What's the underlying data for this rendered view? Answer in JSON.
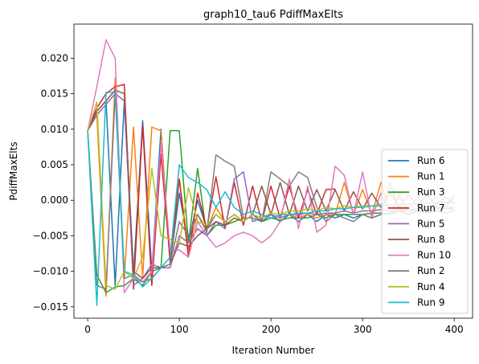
{
  "chart_data": {
    "type": "line",
    "title": "graph10_tau6 PdiffMaxElts",
    "xlabel": "Iteration Number",
    "ylabel": "PdiffMaxElts",
    "xlim": [
      -15,
      420
    ],
    "ylim": [
      -0.0166,
      0.0248
    ],
    "xticks": [
      0,
      100,
      200,
      300,
      400
    ],
    "xtick_labels": [
      "0",
      "100",
      "200",
      "300",
      "400"
    ],
    "yticks": [
      -0.015,
      -0.01,
      -0.005,
      0.0,
      0.005,
      0.01,
      0.015,
      0.02
    ],
    "ytick_labels": [
      "−0.015",
      "−0.010",
      "−0.005",
      "0.000",
      "0.005",
      "0.010",
      "0.015",
      "0.020"
    ],
    "grid": false,
    "legend_position": "lower-right",
    "series": [
      {
        "name": "Run 6",
        "color": "#1f77b4",
        "x": [
          0,
          10,
          20,
          30,
          40,
          50,
          60,
          70,
          80,
          90,
          100,
          110,
          120,
          130,
          140,
          150,
          160,
          170,
          180,
          190,
          200,
          210,
          220,
          230,
          240,
          250,
          260,
          270,
          280,
          290,
          300,
          310,
          320,
          330,
          340,
          350,
          360,
          370,
          380,
          390,
          400
        ],
        "y": [
          0.0098,
          0.0125,
          0.014,
          -0.012,
          0.014,
          -0.0105,
          0.0112,
          -0.01,
          0.01,
          -0.009,
          0.001,
          -0.006,
          0.0,
          -0.004,
          -0.002,
          -0.003,
          -0.002,
          -0.003,
          -0.002,
          -0.003,
          -0.002,
          -0.003,
          -0.002,
          -0.003,
          -0.002,
          -0.003,
          -0.002,
          -0.0025,
          -0.002,
          -0.0025,
          -0.002,
          -0.0025,
          -0.002,
          -0.002,
          -0.0015,
          -0.002,
          -0.0015,
          -0.0018,
          -0.0015,
          -0.0018,
          -0.0015
        ]
      },
      {
        "name": "Run 1",
        "color": "#ff7f0e",
        "x": [
          0,
          10,
          20,
          30,
          40,
          50,
          60,
          70,
          80,
          90,
          100,
          110,
          120,
          130,
          140,
          150,
          160,
          170,
          180,
          190,
          200,
          210,
          220,
          230,
          240,
          250,
          260,
          270,
          280,
          290,
          300,
          310,
          320,
          330,
          340,
          350,
          360,
          370,
          380,
          390,
          400
        ],
        "y": [
          0.0098,
          0.012,
          -0.0135,
          0.0172,
          -0.011,
          0.0103,
          -0.0108,
          0.0103,
          0.0098,
          -0.009,
          0.003,
          -0.007,
          -0.002,
          -0.004,
          -0.001,
          -0.003,
          -0.002,
          -0.003,
          -0.002,
          -0.0025,
          -0.002,
          -0.0025,
          -0.002,
          -0.0025,
          -0.002,
          -0.0025,
          -0.002,
          -0.002,
          0.0025,
          -0.002,
          0.0015,
          -0.002,
          0.0025,
          -0.002,
          0.001,
          -0.0015,
          0.0005,
          -0.001,
          0.0005,
          -0.001,
          0.0005
        ]
      },
      {
        "name": "Run 3",
        "color": "#2ca02c",
        "x": [
          0,
          10,
          20,
          30,
          40,
          50,
          60,
          70,
          80,
          90,
          100,
          110,
          120,
          130,
          140,
          150,
          160,
          170,
          180,
          190,
          200,
          210,
          220,
          230,
          240,
          250,
          260,
          270,
          280,
          290,
          300,
          310,
          320,
          330,
          340,
          350,
          360,
          370,
          380,
          390,
          400
        ],
        "y": [
          0.0098,
          -0.0105,
          -0.013,
          -0.0122,
          -0.012,
          -0.011,
          -0.012,
          -0.01,
          -0.0095,
          0.0098,
          0.0098,
          -0.006,
          0.0045,
          -0.005,
          -0.0035,
          -0.0035,
          -0.003,
          -0.0025,
          -0.0025,
          -0.003,
          -0.0025,
          -0.0028,
          -0.0025,
          -0.0025,
          -0.0025,
          -0.002,
          -0.0025,
          -0.002,
          -0.002,
          -0.002,
          -0.002,
          -0.0018,
          -0.0018,
          -0.0018,
          -0.0015,
          -0.0015,
          -0.0015,
          -0.0015,
          -0.0012,
          -0.0012,
          -0.0012
        ]
      },
      {
        "name": "Run 7",
        "color": "#d62728",
        "x": [
          0,
          10,
          20,
          30,
          40,
          50,
          60,
          70,
          80,
          90,
          100,
          110,
          120,
          130,
          140,
          150,
          160,
          170,
          180,
          190,
          200,
          210,
          220,
          230,
          240,
          250,
          260,
          270
        ],
        "y": [
          0.0098,
          0.013,
          0.015,
          0.016,
          0.0163,
          -0.0125,
          0.0105,
          -0.012,
          0.0065,
          -0.0085,
          0.003,
          -0.008,
          0.001,
          -0.004,
          0.0033,
          -0.004,
          0.0025,
          -0.0035,
          0.002,
          -0.003,
          0.002,
          -0.0025,
          0.002,
          -0.0025,
          0.0015,
          -0.002,
          0.0015,
          0.0016
        ]
      },
      {
        "name": "Run 5",
        "color": "#9467bd",
        "x": [
          0,
          10,
          20,
          30,
          40,
          50,
          60,
          70,
          80,
          90,
          100,
          110,
          120,
          130,
          140,
          150,
          160,
          170,
          180,
          190,
          200,
          210,
          220,
          230,
          240,
          250,
          260,
          270,
          280,
          290,
          300,
          310,
          320,
          330,
          340,
          350,
          360,
          370,
          380,
          390,
          400
        ],
        "y": [
          0.0098,
          0.012,
          0.0135,
          0.015,
          0.014,
          -0.012,
          -0.011,
          -0.009,
          -0.0095,
          -0.0095,
          -0.005,
          -0.006,
          -0.004,
          -0.005,
          -0.003,
          -0.004,
          0.003,
          0.004,
          -0.003,
          -0.0025,
          -0.002,
          -0.0025,
          -0.002,
          -0.002,
          -0.0018,
          -0.002,
          -0.0018,
          -0.0018,
          -0.0015,
          -0.0018,
          -0.0015,
          -0.0015,
          -0.0013,
          -0.0015,
          -0.0013,
          -0.0013,
          -0.0012,
          -0.0012,
          -0.001,
          -0.0012,
          -0.001
        ]
      },
      {
        "name": "Run 8",
        "color": "#8c564b",
        "x": [
          0,
          10,
          20,
          30,
          40,
          50,
          60,
          70,
          80,
          90,
          100,
          110,
          120,
          130,
          140,
          150,
          160,
          170,
          180,
          190,
          200,
          210,
          220,
          230,
          240,
          250,
          260,
          270,
          280,
          290,
          300,
          310,
          320,
          330,
          340,
          350,
          360,
          370,
          380,
          390,
          400
        ],
        "y": [
          0.0098,
          0.0125,
          0.014,
          0.0155,
          0.015,
          -0.01,
          -0.011,
          -0.0095,
          -0.0095,
          -0.009,
          -0.006,
          -0.0065,
          -0.005,
          -0.004,
          -0.003,
          -0.0035,
          -0.0025,
          -0.003,
          -0.002,
          0.002,
          -0.002,
          0.0025,
          -0.002,
          0.002,
          -0.0015,
          0.0015,
          -0.0015,
          0.0015,
          -0.0015,
          0.0012,
          -0.0012,
          0.001,
          -0.001,
          0.001,
          -0.001,
          0.0008,
          -0.0008,
          0.0008,
          -0.0008,
          0.0005,
          -0.0005
        ]
      },
      {
        "name": "Run 10",
        "color": "#e377c2",
        "x": [
          0,
          10,
          20,
          30,
          40,
          50,
          60,
          70,
          80,
          90,
          100,
          110,
          120,
          130,
          140,
          150,
          160,
          170,
          180,
          190,
          200,
          210,
          220,
          230,
          240,
          250,
          260,
          270,
          280,
          290,
          300,
          310,
          320,
          330,
          340,
          350,
          360,
          370,
          380,
          390,
          400
        ],
        "y": [
          0.0098,
          0.016,
          0.0226,
          0.02,
          -0.013,
          -0.011,
          -0.0115,
          -0.01,
          0.008,
          -0.007,
          -0.007,
          -0.008,
          -0.003,
          -0.005,
          -0.0066,
          -0.006,
          -0.005,
          -0.0045,
          -0.005,
          -0.006,
          -0.005,
          -0.003,
          0.003,
          -0.004,
          0.002,
          -0.0045,
          -0.0035,
          0.0048,
          0.0035,
          -0.002,
          0.004,
          -0.0025,
          0.001,
          -0.002,
          0.0005,
          -0.0015,
          0.0005,
          -0.0012,
          0.0005,
          -0.001,
          0.0008
        ]
      },
      {
        "name": "Run 2",
        "color": "#7f7f7f",
        "x": [
          0,
          10,
          20,
          30,
          40,
          50,
          60,
          70,
          80,
          90,
          100,
          110,
          120,
          130,
          140,
          150,
          160,
          170,
          180,
          190,
          200,
          210,
          220,
          230,
          240,
          250,
          260,
          270,
          280,
          290,
          300,
          310,
          320,
          330,
          340,
          350,
          360,
          370,
          380,
          390,
          400
        ],
        "y": [
          0.0098,
          -0.012,
          -0.0125,
          0.015,
          -0.011,
          -0.0105,
          -0.0115,
          -0.011,
          -0.0095,
          -0.009,
          -0.003,
          -0.005,
          -0.002,
          -0.0045,
          0.0064,
          0.0055,
          0.0048,
          -0.0025,
          -0.0025,
          -0.003,
          0.004,
          0.003,
          0.002,
          0.004,
          0.0032,
          -0.001,
          -0.003,
          -0.002,
          -0.0025,
          -0.003,
          -0.002,
          -0.0025,
          -0.002,
          0.0025,
          -0.0015,
          -0.0015,
          -0.0012,
          -0.0012,
          -0.001,
          -0.001,
          -0.001
        ]
      },
      {
        "name": "Run 4",
        "color": "#bcbd22",
        "x": [
          0,
          10,
          20,
          30,
          40,
          50,
          60,
          70,
          80,
          90,
          100,
          110,
          120,
          130,
          140,
          150,
          160,
          170,
          180,
          190,
          200,
          210,
          220,
          230,
          240,
          250,
          260,
          270,
          280,
          290,
          300,
          310,
          320,
          330,
          340,
          350,
          360,
          370,
          380,
          390,
          400
        ],
        "y": [
          0.0098,
          0.0138,
          -0.012,
          -0.0125,
          -0.01,
          -0.011,
          -0.008,
          0.0045,
          -0.005,
          -0.0055,
          -0.006,
          0.0018,
          -0.003,
          -0.0035,
          -0.002,
          -0.003,
          -0.002,
          -0.003,
          -0.002,
          -0.0025,
          -0.0018,
          -0.002,
          -0.0015,
          -0.0015,
          -0.0012,
          -0.0015,
          -0.001,
          -0.0012,
          -0.0008,
          -0.001,
          -0.0008,
          -0.0008,
          -0.0006,
          -0.0006,
          -0.0005,
          -0.0005,
          -0.0004,
          -0.0004,
          -0.0003,
          -0.0003,
          -0.0003
        ]
      },
      {
        "name": "Run 9",
        "color": "#17becf",
        "x": [
          0,
          10,
          20,
          30,
          40,
          50,
          60,
          70,
          80,
          90,
          100,
          110,
          120,
          130,
          140,
          150,
          160,
          170,
          180,
          190,
          200,
          210,
          220,
          230,
          240,
          250,
          260,
          270,
          280,
          290,
          300,
          310,
          320,
          330,
          340,
          350,
          360,
          370,
          380,
          390,
          400
        ],
        "y": [
          0.0098,
          -0.0148,
          0.0152,
          0.0152,
          -0.01,
          -0.0105,
          -0.0122,
          -0.011,
          -0.0095,
          -0.008,
          0.005,
          0.0032,
          0.0025,
          0.0015,
          -0.001,
          0.0012,
          -0.001,
          -0.002,
          -0.0015,
          -0.002,
          -0.0025,
          -0.002,
          -0.002,
          -0.0018,
          -0.0018,
          -0.0015,
          -0.0015,
          -0.0012,
          -0.0012,
          -0.001,
          -0.001,
          -0.0008,
          -0.0008,
          -0.0006,
          -0.0006,
          -0.0005,
          -0.0005,
          -0.0004,
          -0.0004,
          -0.0003,
          -0.0003
        ]
      }
    ]
  }
}
